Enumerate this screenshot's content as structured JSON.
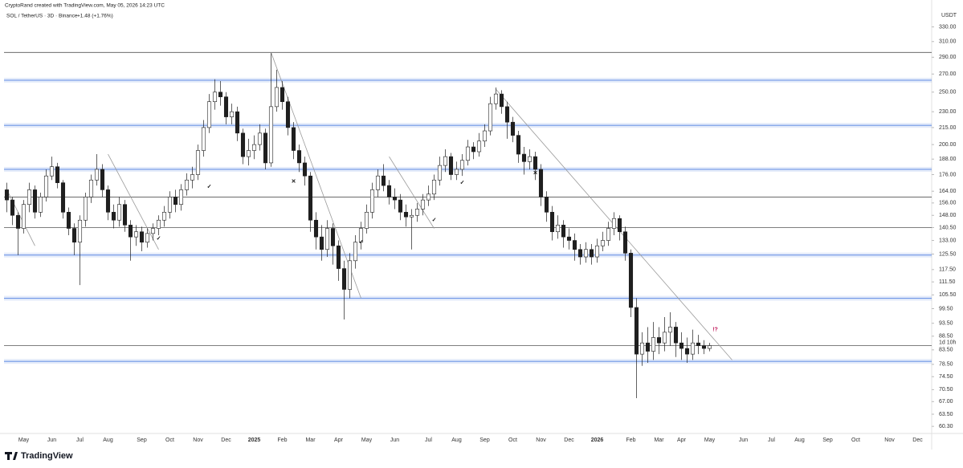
{
  "header": {
    "credit": "CryptoRand created with TradingView.com, May 05, 2026 14:23 UTC",
    "symbol": "SOL / TetherUS · 3D · Binance",
    "change": "+1.48 (+1.76%)"
  },
  "footer": {
    "brand": "TradingView"
  },
  "chart_data": {
    "type": "candlestick",
    "y_axis_label": "USDT",
    "log_scale": true,
    "up_color": "#ffffff",
    "down_color": "#1f1f1f",
    "outline_color": "#1f1f1f",
    "band_color": "#6f96e6",
    "level_color": "#555555",
    "trend_color": "#9a9a9a",
    "countdown": "1d 10h",
    "categories": [
      null,
      null,
      null,
      "May",
      null,
      null,
      null,
      null,
      "Jun",
      null,
      null,
      null,
      null,
      "Jul",
      null,
      null,
      null,
      null,
      "Aug",
      null,
      null,
      null,
      null,
      null,
      "Sep",
      null,
      null,
      null,
      null,
      "Oct",
      null,
      null,
      null,
      null,
      "Nov",
      null,
      null,
      null,
      null,
      "Dec",
      null,
      null,
      null,
      null,
      "2025",
      null,
      null,
      null,
      null,
      "Feb",
      null,
      null,
      null,
      null,
      "Mar",
      null,
      null,
      null,
      null,
      "Apr",
      null,
      null,
      null,
      null,
      "May",
      null,
      null,
      null,
      null,
      "Jun",
      null,
      null,
      null,
      null,
      null,
      "Jul",
      null,
      null,
      null,
      null,
      "Aug",
      null,
      null,
      null,
      null,
      "Sep",
      null,
      null,
      null,
      null,
      "Oct",
      null,
      null,
      null,
      null,
      "Nov",
      null,
      null,
      null,
      null,
      "Dec",
      null,
      null,
      null,
      null,
      "2026",
      null,
      null,
      null,
      null,
      null,
      "Feb",
      null,
      null,
      null,
      null,
      "Mar",
      null,
      null,
      null,
      "Apr",
      null,
      null,
      null,
      null,
      "May",
      null,
      null,
      null,
      null,
      null,
      "Jun",
      null,
      null,
      null,
      null,
      "Jul",
      null,
      null,
      null,
      null,
      "Aug",
      null,
      null,
      null,
      null,
      "Sep",
      null,
      null,
      null,
      null,
      "Oct",
      null,
      null,
      null,
      null,
      null,
      "Nov",
      null,
      null,
      null,
      null,
      "Dec",
      null,
      null
    ],
    "open": [
      165,
      158,
      148,
      140,
      155,
      165,
      150,
      160,
      175,
      182,
      170,
      150,
      140,
      132,
      145,
      160,
      172,
      180,
      165,
      150,
      145,
      155,
      142,
      135,
      138,
      132,
      137,
      140,
      145,
      150,
      160,
      155,
      165,
      172,
      176,
      195,
      215,
      240,
      250,
      245,
      225,
      230,
      210,
      190,
      195,
      200,
      210,
      185,
      235,
      255,
      240,
      215,
      195,
      185,
      175,
      145,
      135,
      128,
      140,
      130,
      118,
      108,
      122,
      132,
      140,
      150,
      165,
      175,
      168,
      160,
      158,
      150,
      147,
      148,
      152,
      158,
      162,
      172,
      183,
      190,
      176,
      180,
      187,
      198,
      194,
      203,
      212,
      238,
      248,
      235,
      220,
      208,
      192,
      186,
      190,
      180,
      160,
      150,
      138,
      142,
      135,
      133,
      128,
      124,
      128,
      124,
      130,
      133,
      140,
      146,
      138,
      126,
      100,
      82,
      86,
      83,
      88,
      86,
      90,
      92,
      86,
      84,
      82,
      86,
      85,
      84,
      null,
      null,
      null,
      null,
      null,
      null,
      null,
      null,
      null,
      null,
      null,
      null,
      null,
      null,
      null,
      null,
      null,
      null,
      null,
      null,
      null,
      null,
      null,
      null,
      null,
      null,
      null,
      null,
      null,
      null,
      null,
      null,
      null,
      null,
      null,
      null,
      null,
      null,
      null
    ],
    "high": [
      170,
      160,
      150,
      158,
      170,
      168,
      163,
      180,
      190,
      185,
      172,
      153,
      143,
      148,
      163,
      176,
      192,
      184,
      168,
      155,
      160,
      158,
      145,
      142,
      141,
      140,
      143,
      148,
      154,
      164,
      165,
      169,
      177,
      182,
      200,
      222,
      248,
      264,
      262,
      250,
      238,
      235,
      214,
      205,
      208,
      218,
      214,
      295,
      275,
      262,
      245,
      220,
      200,
      190,
      178,
      150,
      142,
      145,
      143,
      133,
      122,
      126,
      136,
      144,
      155,
      170,
      180,
      184,
      172,
      166,
      162,
      155,
      152,
      156,
      162,
      168,
      176,
      190,
      196,
      193,
      186,
      192,
      204,
      202,
      210,
      218,
      245,
      255,
      252,
      240,
      225,
      212,
      198,
      196,
      194,
      184,
      164,
      154,
      148,
      145,
      140,
      137,
      131,
      132,
      131,
      134,
      138,
      144,
      150,
      148,
      141,
      128,
      104,
      90,
      92,
      94,
      92,
      96,
      98,
      94,
      90,
      88,
      91,
      89,
      87,
      86,
      null,
      null,
      null,
      null,
      null,
      null,
      null,
      null,
      null,
      null,
      null,
      null,
      null,
      null,
      null,
      null,
      null,
      null,
      null,
      null,
      null,
      null,
      null,
      null,
      null,
      null,
      null,
      null,
      null,
      null,
      null,
      null,
      null,
      null,
      null,
      null,
      null,
      null,
      null
    ],
    "low": [
      150,
      142,
      125,
      137,
      150,
      146,
      147,
      157,
      172,
      166,
      146,
      136,
      125,
      110,
      141,
      156,
      168,
      160,
      145,
      140,
      141,
      138,
      122,
      130,
      127,
      129,
      133,
      136,
      141,
      146,
      150,
      151,
      161,
      166,
      172,
      190,
      210,
      232,
      236,
      218,
      218,
      203,
      184,
      183,
      188,
      195,
      180,
      182,
      230,
      232,
      208,
      188,
      178,
      168,
      138,
      128,
      122,
      124,
      120,
      112,
      95,
      104,
      118,
      128,
      137,
      146,
      160,
      164,
      155,
      152,
      145,
      141,
      128,
      144,
      148,
      154,
      158,
      168,
      178,
      172,
      172,
      175,
      183,
      188,
      190,
      198,
      208,
      232,
      228,
      205,
      202,
      185,
      176,
      180,
      172,
      154,
      144,
      133,
      134,
      129,
      128,
      122,
      120,
      121,
      120,
      121,
      127,
      130,
      136,
      133,
      122,
      96,
      68,
      78,
      79,
      80,
      82,
      83,
      85,
      81,
      80,
      79,
      80,
      82,
      82,
      83,
      null,
      null,
      null,
      null,
      null,
      null,
      null,
      null,
      null,
      null,
      null,
      null,
      null,
      null,
      null,
      null,
      null,
      null,
      null,
      null,
      null,
      null,
      null,
      null,
      null,
      null,
      null,
      null,
      null,
      null,
      null,
      null,
      null,
      null,
      null,
      null,
      null,
      null,
      null
    ],
    "close": [
      158,
      148,
      140,
      155,
      165,
      150,
      160,
      175,
      182,
      170,
      150,
      140,
      132,
      145,
      160,
      172,
      180,
      165,
      150,
      145,
      155,
      142,
      135,
      138,
      132,
      137,
      140,
      145,
      150,
      160,
      155,
      165,
      172,
      176,
      195,
      215,
      240,
      250,
      245,
      225,
      230,
      210,
      190,
      195,
      200,
      210,
      185,
      235,
      255,
      240,
      215,
      195,
      185,
      175,
      145,
      135,
      128,
      140,
      130,
      118,
      108,
      122,
      132,
      140,
      150,
      165,
      175,
      168,
      160,
      158,
      150,
      147,
      148,
      152,
      158,
      162,
      172,
      183,
      190,
      176,
      180,
      187,
      198,
      194,
      203,
      212,
      238,
      248,
      235,
      220,
      208,
      192,
      186,
      190,
      180,
      160,
      150,
      138,
      142,
      135,
      133,
      128,
      124,
      128,
      124,
      130,
      133,
      140,
      146,
      138,
      126,
      100,
      82,
      86,
      83,
      88,
      86,
      90,
      92,
      86,
      84,
      82,
      86,
      85,
      84,
      85,
      null,
      null,
      null,
      null,
      null,
      null,
      null,
      null,
      null,
      null,
      null,
      null,
      null,
      null,
      null,
      null,
      null,
      null,
      null,
      null,
      null,
      null,
      null,
      null,
      null,
      null,
      null,
      null,
      null,
      null,
      null,
      null,
      null,
      null,
      null,
      null,
      null,
      null,
      null
    ],
    "ylim": [
      58.5,
      360
    ],
    "yticks": [
      {
        "value": 60.3,
        "label": "60.30"
      },
      {
        "value": 63.5,
        "label": "63.50"
      },
      {
        "value": 67,
        "label": "67.00"
      },
      {
        "value": 70.5,
        "label": "70.50"
      },
      {
        "value": 74.5,
        "label": "74.50"
      },
      {
        "value": 78.5,
        "label": "78.50"
      },
      {
        "value": 83.5,
        "label": "83.50"
      },
      {
        "value": 88.5,
        "label": "88.50"
      },
      {
        "value": 93.5,
        "label": "93.50"
      },
      {
        "value": 99.5,
        "label": "99.50"
      },
      {
        "value": 105.5,
        "label": "105.50"
      },
      {
        "value": 111.5,
        "label": "111.50"
      },
      {
        "value": 117.5,
        "label": "117.50"
      },
      {
        "value": 125.5,
        "label": "125.50"
      },
      {
        "value": 133,
        "label": "133.00"
      },
      {
        "value": 140.5,
        "label": "140.50"
      },
      {
        "value": 148,
        "label": "148.00"
      },
      {
        "value": 156,
        "label": "156.00"
      },
      {
        "value": 164,
        "label": "164.00"
      },
      {
        "value": 176,
        "label": "176.00"
      },
      {
        "value": 188,
        "label": "188.00"
      },
      {
        "value": 200,
        "label": "200.00"
      },
      {
        "value": 215,
        "label": "215.00"
      },
      {
        "value": 230,
        "label": "230.00"
      },
      {
        "value": 250,
        "label": "250.00"
      },
      {
        "value": 270,
        "label": "270.00"
      },
      {
        "value": 290,
        "label": "290.00"
      },
      {
        "value": 310,
        "label": "310.00"
      },
      {
        "value": 330,
        "label": "330.00"
      }
    ],
    "levels": [
      {
        "value": 296,
        "style": "line"
      },
      {
        "value": 263,
        "style": "band"
      },
      {
        "value": 217,
        "style": "band"
      },
      {
        "value": 180,
        "style": "band"
      },
      {
        "value": 160,
        "style": "line"
      },
      {
        "value": 140.5,
        "style": "line"
      },
      {
        "value": 125,
        "style": "band"
      },
      {
        "value": 104,
        "style": "band"
      },
      {
        "value": 85,
        "style": "line"
      },
      {
        "value": 79.5,
        "style": "band"
      }
    ],
    "trendlines": [
      {
        "x0": 0,
        "y0": 165,
        "x1": 5,
        "y1": 130
      },
      {
        "x0": 18,
        "y0": 192,
        "x1": 27,
        "y1": 128
      },
      {
        "x0": 47,
        "y0": 296,
        "x1": 63,
        "y1": 104
      },
      {
        "x0": 68,
        "y0": 190,
        "x1": 76,
        "y1": 140
      },
      {
        "x0": 87,
        "y0": 253,
        "x1": 129,
        "y1": 80
      }
    ],
    "markers": [
      {
        "x": 27,
        "y": 134,
        "text": "✓",
        "color": "#111111"
      },
      {
        "x": 36,
        "y": 167,
        "text": "✓",
        "color": "#111111"
      },
      {
        "x": 51,
        "y": 171,
        "text": "✕",
        "color": "#111111"
      },
      {
        "x": 63,
        "y": 132,
        "text": "✓",
        "color": "#111111"
      },
      {
        "x": 76,
        "y": 145,
        "text": "✓",
        "color": "#111111"
      },
      {
        "x": 81,
        "y": 170,
        "text": "✓",
        "color": "#111111"
      },
      {
        "x": 94,
        "y": 177,
        "text": "✕",
        "color": "#111111"
      },
      {
        "x": 126,
        "y": 91,
        "text": "!?",
        "color": "#c2185b"
      }
    ]
  }
}
